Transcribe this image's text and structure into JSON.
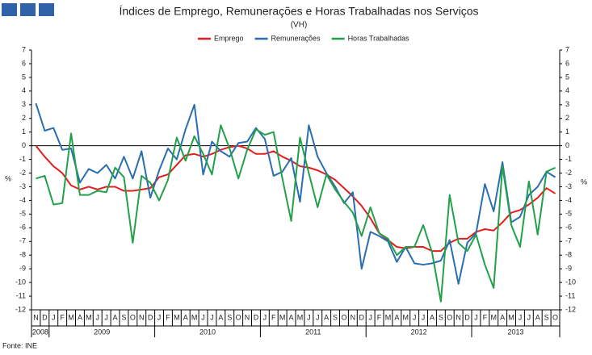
{
  "chart_data": {
    "type": "line",
    "title": "Índices de Emprego, Remunerações e Horas Trabalhadas nos Serviços",
    "subtitle": "(VH)",
    "ylabel": "%",
    "y2label": "%",
    "source": "Fonte: INE",
    "categories": [
      "N",
      "D",
      "J",
      "F",
      "M",
      "A",
      "M",
      "J",
      "J",
      "A",
      "S",
      "O",
      "N",
      "D",
      "J",
      "F",
      "M",
      "A",
      "M",
      "J",
      "J",
      "A",
      "S",
      "O",
      "N",
      "D",
      "J",
      "F",
      "M",
      "A",
      "M",
      "J",
      "J",
      "A",
      "S",
      "O",
      "N",
      "D",
      "J",
      "F",
      "M",
      "A",
      "M",
      "J",
      "J",
      "A",
      "S",
      "O",
      "N",
      "D",
      "J",
      "F",
      "M",
      "A",
      "M",
      "J",
      "J",
      "A",
      "S",
      "O"
    ],
    "years": [
      "2008",
      "2009",
      "2010",
      "2011",
      "2012",
      "2013"
    ],
    "ylim": [
      -12,
      7
    ],
    "yticks": [
      -12,
      -11,
      -10,
      -9,
      -8,
      -7,
      -6,
      -5,
      -4,
      -3,
      -2,
      -1,
      0,
      1,
      2,
      3,
      4,
      5,
      6,
      7
    ],
    "y2lim": [
      -12,
      7
    ],
    "y2ticks": [
      -12,
      -11,
      -10,
      -9,
      -8,
      -7,
      -6,
      -5,
      -4,
      -3,
      -2,
      -1,
      0,
      1,
      2,
      3,
      4,
      5,
      6,
      7
    ],
    "series": [
      {
        "name": "Emprego",
        "color": "#e0201c",
        "values": [
          0,
          -0.8,
          -1.5,
          -2.0,
          -2.9,
          -3.2,
          -3.0,
          -3.2,
          -3.0,
          -3.0,
          -3.3,
          -3.3,
          -3.2,
          -3.1,
          -2.3,
          -2.1,
          -1.4,
          -0.7,
          -0.6,
          -0.8,
          -0.6,
          -0.3,
          -0.1,
          0,
          -0.2,
          -0.6,
          -0.6,
          -0.4,
          -0.8,
          -1.1,
          -1.5,
          -1.6,
          -1.8,
          -2.1,
          -2.5,
          -3.1,
          -3.7,
          -4.4,
          -5.3,
          -6.4,
          -6.9,
          -7.4,
          -7.5,
          -7.4,
          -7.4,
          -7.7,
          -7.7,
          -7.1,
          -6.8,
          -6.8,
          -6.3,
          -6.1,
          -6.2,
          -5.6,
          -4.9,
          -4.7,
          -4.3,
          -3.8,
          -3.1,
          -3.5
        ]
      },
      {
        "name": "Remunerações",
        "color": "#2a6eb0",
        "values": [
          3.1,
          1.1,
          1.3,
          -0.3,
          -0.2,
          -2.7,
          -1.7,
          -2.0,
          -1.4,
          -2.4,
          -0.8,
          -2.4,
          -0.4,
          -3.8,
          -1.8,
          -0.2,
          -1.0,
          1.2,
          3.0,
          -2.1,
          0.3,
          -0.4,
          -0.8,
          0.2,
          0.3,
          1.3,
          0.5,
          -2.2,
          -1.9,
          -0.9,
          -4.1,
          1.5,
          -0.8,
          -2.0,
          -3.0,
          -4.2,
          -3.4,
          -9.0,
          -6.3,
          -6.6,
          -7.0,
          -8.5,
          -7.4,
          -8.6,
          -8.7,
          -8.6,
          -8.4,
          -6.9,
          -10.1,
          -7.1,
          -6.4,
          -2.8,
          -4.8,
          -1.2,
          -5.6,
          -5.2,
          -3.6,
          -3.0,
          -1.9,
          -2.3
        ]
      },
      {
        "name": "Horas Trabalhadas",
        "color": "#22a04a",
        "values": [
          -2.4,
          -2.2,
          -4.3,
          -4.2,
          0.9,
          -3.6,
          -3.6,
          -3.3,
          -3.4,
          -1.6,
          -2.3,
          -7.1,
          -2.2,
          -2.7,
          -4.0,
          -2.5,
          0.6,
          -1.1,
          0.7,
          -0.6,
          -2.1,
          1.5,
          -0.2,
          -2.4,
          -0.3,
          1.2,
          0.8,
          1.0,
          -2.4,
          -5.5,
          0.6,
          -2.0,
          -4.5,
          -2.1,
          -3.2,
          -4.1,
          -4.9,
          -6.6,
          -4.5,
          -6.4,
          -6.8,
          -8.0,
          -7.4,
          -7.4,
          -5.8,
          -7.8,
          -11.4,
          -3.6,
          -7.1,
          -7.7,
          -6.5,
          -8.7,
          -10.4,
          -1.5,
          -5.8,
          -7.4,
          -2.6,
          -6.5,
          -1.9,
          -1.6
        ]
      }
    ]
  }
}
